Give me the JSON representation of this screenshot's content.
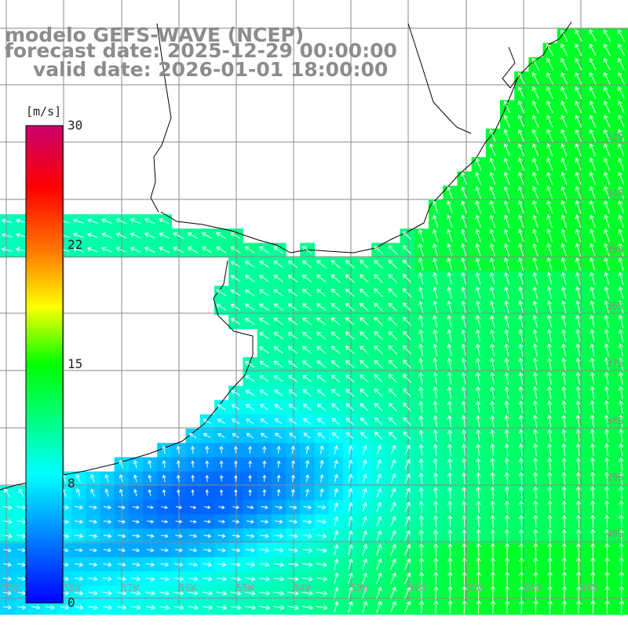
{
  "header": {
    "title": "modelo GEFS-WAVE (NCEP)",
    "forecast_date": "forecast date: 2025-12-29 00:00:00",
    "valid_date": "valid date: 2026-01-01 18:00:00"
  },
  "colorbar": {
    "unit": "[m/s]",
    "ticks": [
      "30",
      "22",
      "15",
      "8",
      "0"
    ],
    "tick_values": [
      30,
      22,
      15,
      8,
      0
    ],
    "colors": [
      "#0000ff",
      "#00ffff",
      "#00ff00",
      "#ffff00",
      "#ff8000",
      "#ff0000",
      "#c8006e"
    ]
  },
  "map": {
    "latitude_labels": [
      "33S",
      "34S",
      "35S",
      "36S",
      "37S",
      "38S",
      "39S",
      "40S"
    ],
    "longitude_labels": [
      "59W",
      "58W",
      "57W",
      "56W",
      "55W",
      "54W",
      "53W",
      "52W",
      "51W",
      "50W",
      "49W"
    ],
    "colors": {
      "land": "#ffffff",
      "coastline": "#000000",
      "gridline": "#888888",
      "wind_arrow": "#ffffff"
    }
  }
}
